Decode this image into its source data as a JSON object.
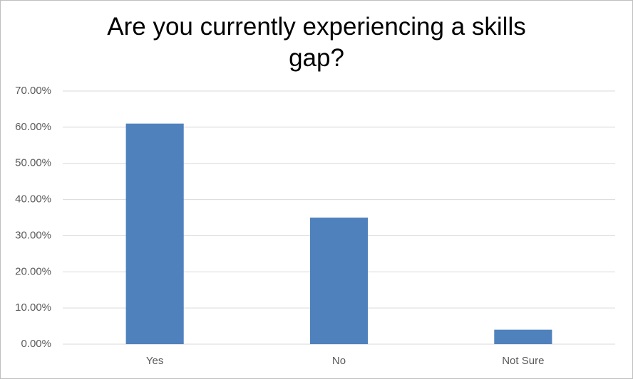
{
  "chart_data": {
    "type": "bar",
    "title": "Are you currently experiencing a skills gap?",
    "categories": [
      "Yes",
      "No",
      "Not Sure"
    ],
    "values": [
      61,
      35,
      4
    ],
    "color": "#4f81bd",
    "ylim": [
      0,
      70
    ],
    "yticks": [
      {
        "value": 0,
        "label": "0.00%"
      },
      {
        "value": 10,
        "label": "10.00%"
      },
      {
        "value": 20,
        "label": "20.00%"
      },
      {
        "value": 30,
        "label": "30.00%"
      },
      {
        "value": 40,
        "label": "40.00%"
      },
      {
        "value": 50,
        "label": "50.00%"
      },
      {
        "value": 60,
        "label": "60.00%"
      },
      {
        "value": 70,
        "label": "70.00%"
      }
    ],
    "grid": true
  }
}
